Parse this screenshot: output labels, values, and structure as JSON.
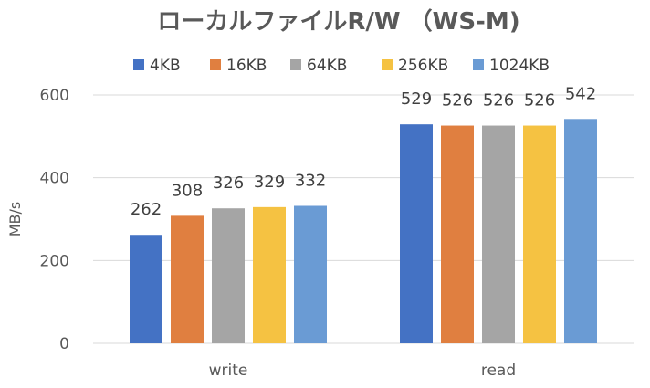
{
  "chart_data": {
    "type": "bar",
    "title": "ローカルファイルR/W （WS-M)",
    "xlabel": "",
    "ylabel": "MB/s",
    "ylim": [
      0,
      600
    ],
    "yticks": [
      0,
      200,
      400,
      600
    ],
    "grid": true,
    "legend": "top",
    "categories": [
      "write",
      "read"
    ],
    "series": [
      {
        "name": "4KB",
        "color": "#4472C4",
        "values": [
          262,
          529
        ]
      },
      {
        "name": "16KB",
        "color": "#E07F40",
        "values": [
          308,
          526
        ]
      },
      {
        "name": "64KB",
        "color": "#A5A5A5",
        "values": [
          326,
          526
        ]
      },
      {
        "name": "256KB",
        "color": "#F5C242",
        "values": [
          329,
          526
        ]
      },
      {
        "name": "1024KB",
        "color": "#6A9BD4",
        "values": [
          332,
          542
        ]
      }
    ]
  }
}
